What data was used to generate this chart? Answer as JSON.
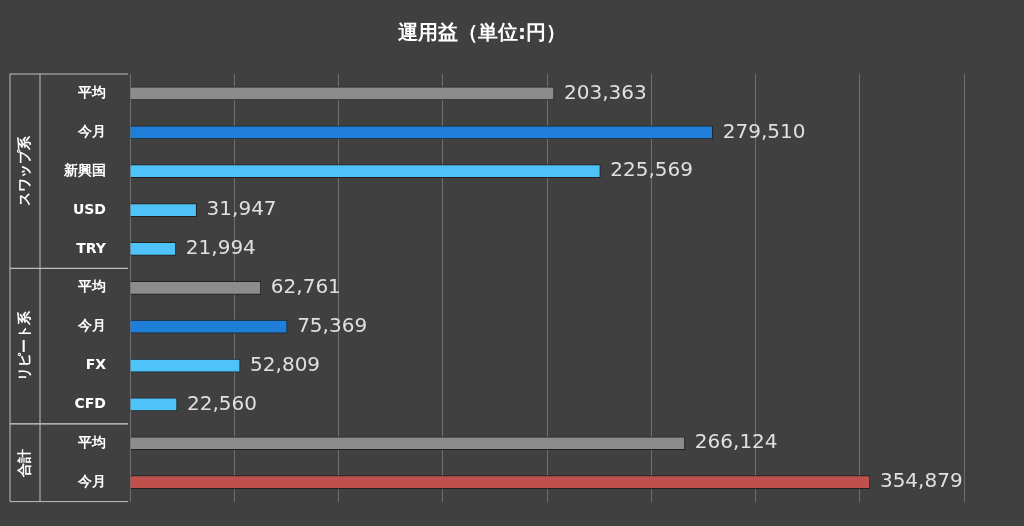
{
  "chart_data": {
    "type": "bar",
    "orientation": "horizontal",
    "title": "運用益（単位:円）",
    "categories": [
      "平均",
      "今月",
      "新興国",
      "USD",
      "TRY",
      "平均",
      "今月",
      "FX",
      "CFD",
      "平均",
      "今月"
    ],
    "values": [
      203363,
      279510,
      225569,
      31947,
      21994,
      62761,
      75369,
      52809,
      22560,
      266124,
      354879
    ],
    "colors": [
      "#8c8c8c",
      "#1f7fd8",
      "#4fc3f7",
      "#4fc3f7",
      "#4fc3f7",
      "#8c8c8c",
      "#1f7fd8",
      "#4fc3f7",
      "#4fc3f7",
      "#8c8c8c",
      "#c0504d"
    ],
    "annotations": [
      "スワップ系",
      "リピート系",
      "合計"
    ],
    "value_labels": [
      "203,363",
      "279,510",
      "225,569",
      "31,947",
      "21,994",
      "62,761",
      "75,369",
      "52,809",
      "22,560",
      "266,124",
      "354,879"
    ],
    "grid": "x",
    "tick_labels": "y",
    "legend": false
  }
}
